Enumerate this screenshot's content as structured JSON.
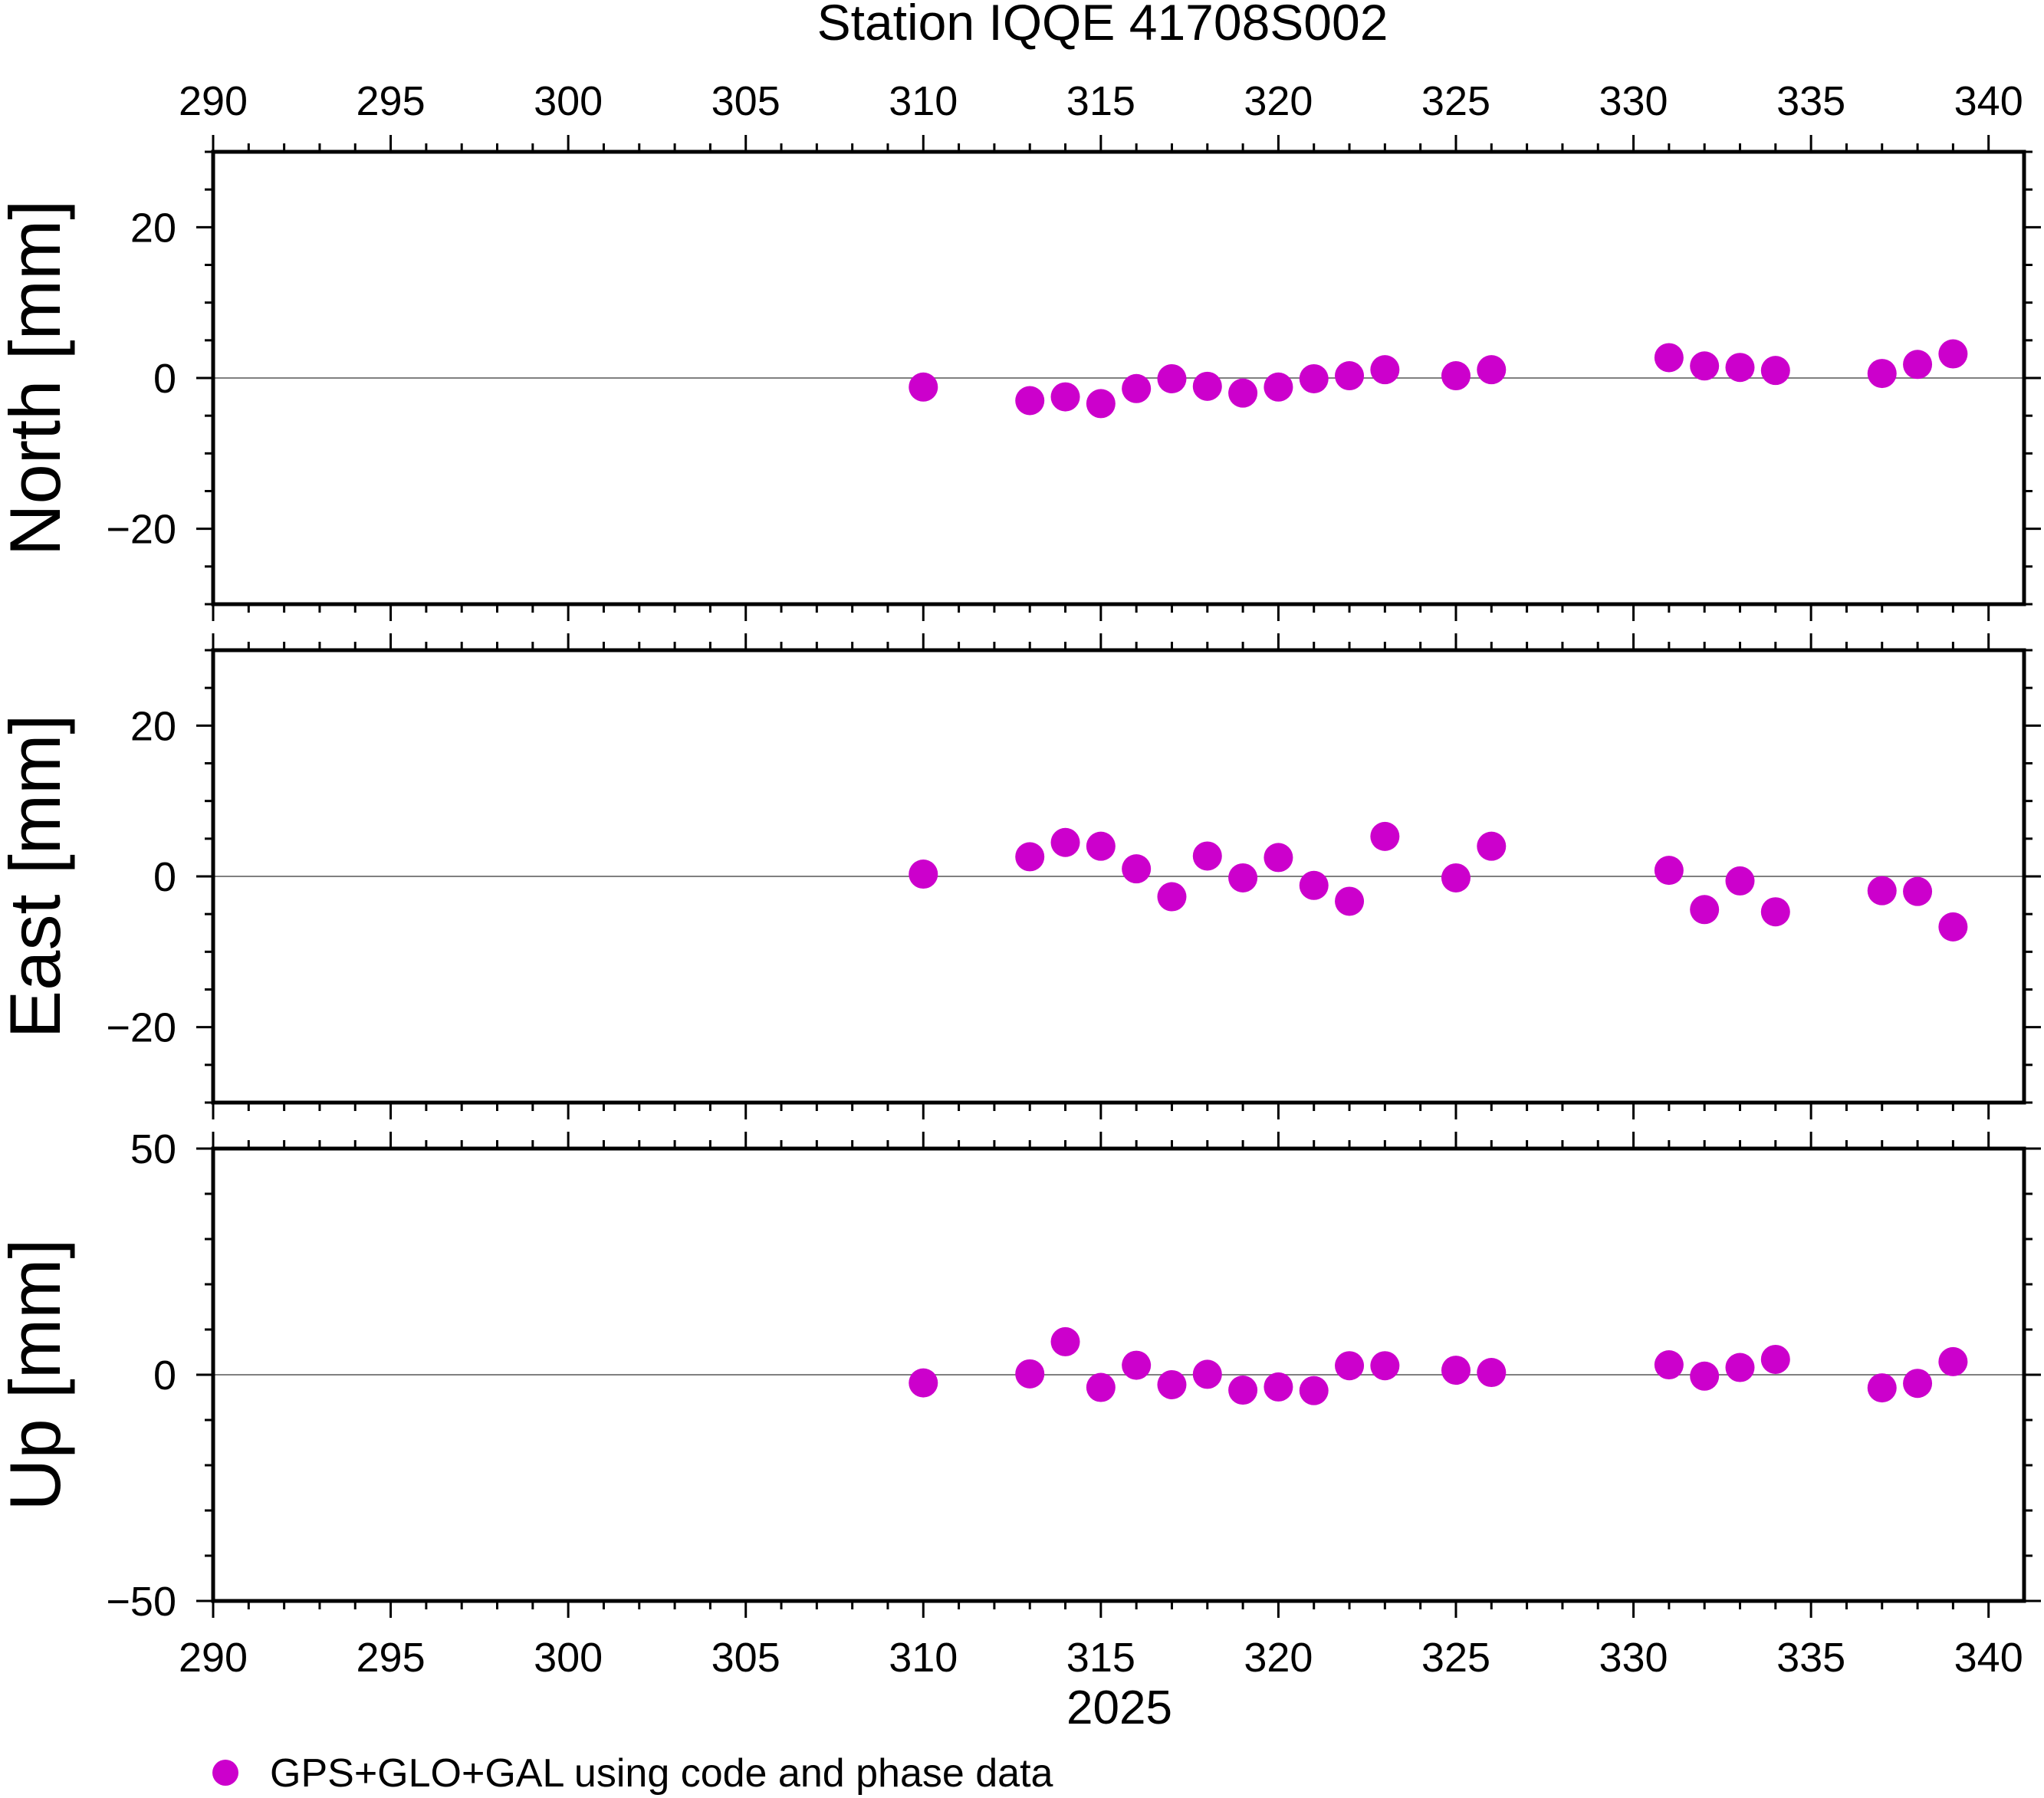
{
  "title": "Station IQQE 41708S002",
  "xlabel": "2025",
  "legend": {
    "label": "GPS+GLO+GAL using code and phase data"
  },
  "colors": {
    "marker": "#cc00cc",
    "frame": "#000000",
    "zero_line": "#808080"
  },
  "chart_data": {
    "type": "scatter",
    "title": "Station IQQE 41708S002",
    "xlabel": "2025",
    "xlim": [
      290,
      341
    ],
    "xticks_major": [
      290,
      295,
      300,
      305,
      310,
      315,
      320,
      325,
      330,
      335,
      340
    ],
    "xticks_minor_step": 1,
    "grid": false,
    "legend_position": "bottom-left",
    "x": [
      310,
      313,
      314,
      315,
      316,
      317,
      318,
      319,
      320,
      321,
      322,
      323,
      325,
      326,
      331,
      332,
      333,
      334,
      337,
      338,
      339
    ],
    "panels": [
      {
        "name": "north",
        "ylabel": "North [mm]",
        "ylim": [
          -30,
          30
        ],
        "yticks": [
          -20,
          0,
          20
        ],
        "ytick_labels": [
          "−20",
          "0",
          "20"
        ],
        "y_minor_step": 5,
        "values": [
          -1.2,
          -3.0,
          -2.5,
          -3.4,
          -1.4,
          -0.1,
          -1.1,
          -2.0,
          -1.2,
          -0.1,
          0.3,
          1.1,
          0.3,
          1.1,
          2.7,
          1.6,
          1.4,
          1.0,
          0.6,
          1.8,
          3.2
        ]
      },
      {
        "name": "east",
        "ylabel": "East [mm]",
        "ylim": [
          -30,
          30
        ],
        "yticks": [
          -20,
          0,
          20
        ],
        "ytick_labels": [
          "−20",
          "0",
          "20"
        ],
        "y_minor_step": 5,
        "values": [
          0.3,
          2.6,
          4.5,
          4.0,
          1.0,
          -2.7,
          2.7,
          -0.2,
          2.5,
          -1.2,
          -3.3,
          5.3,
          -0.2,
          4.0,
          0.8,
          -4.4,
          -0.6,
          -4.7,
          -1.9,
          -2.0,
          -6.7
        ]
      },
      {
        "name": "up",
        "ylabel": "Up [mm]",
        "ylim": [
          -50,
          50
        ],
        "yticks": [
          -50,
          0,
          50
        ],
        "ytick_labels": [
          "−50",
          "0",
          "50"
        ],
        "y_minor_step": 10,
        "values": [
          -1.8,
          0.2,
          7.3,
          -2.8,
          2.1,
          -2.2,
          0.1,
          -3.4,
          -2.7,
          -3.5,
          2.0,
          2.0,
          1.0,
          0.5,
          2.2,
          -0.3,
          1.6,
          3.4,
          -2.9,
          -1.9,
          2.9
        ]
      }
    ]
  }
}
